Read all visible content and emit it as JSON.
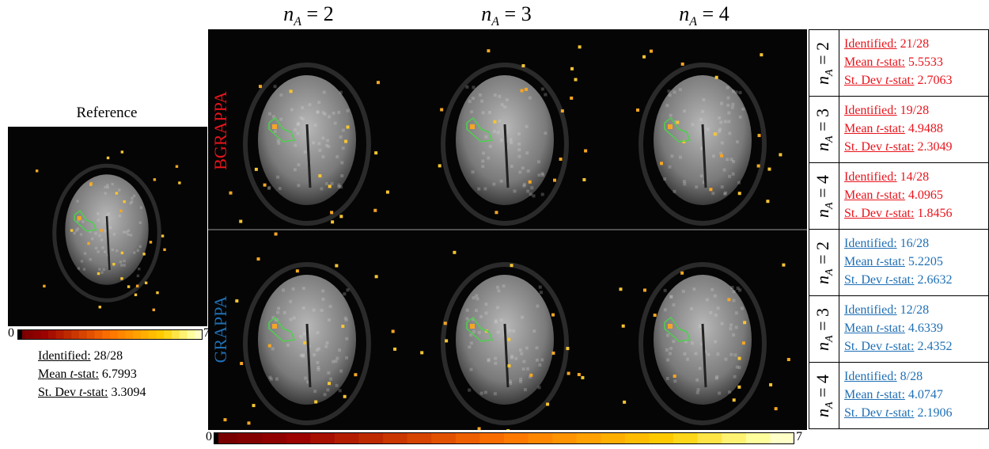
{
  "reference": {
    "title": "Reference",
    "colorbar": {
      "min": "0",
      "max": "7"
    },
    "stats": [
      {
        "label": [
          "Identified:"
        ],
        "value": "28/28"
      },
      {
        "label": [
          "Mean ",
          "t",
          "-stat:"
        ],
        "value": "6.7993"
      },
      {
        "label": [
          "St. Dev ",
          "t",
          "-stat:"
        ],
        "value": "3.3094"
      }
    ]
  },
  "columns": [
    {
      "symbol": "n",
      "subscript": "A",
      "relation": "= 2"
    },
    {
      "symbol": "n",
      "subscript": "A",
      "relation": "= 3"
    },
    {
      "symbol": "n",
      "subscript": "A",
      "relation": "= 4"
    }
  ],
  "methods": [
    {
      "name": "BGRAPPA",
      "color": "#e8141c",
      "rows": [
        {
          "label": {
            "symbol": "n",
            "subscript": "A",
            "relation": "= 2"
          },
          "stats": [
            {
              "label": [
                "Identified:"
              ],
              "value": "21/28"
            },
            {
              "label": [
                "Mean ",
                "t",
                "-stat:"
              ],
              "value": "5.5533"
            },
            {
              "label": [
                "St. Dev ",
                "t",
                "-stat:"
              ],
              "value": "2.7063"
            }
          ]
        },
        {
          "label": {
            "symbol": "n",
            "subscript": "A",
            "relation": "= 3"
          },
          "stats": [
            {
              "label": [
                "Identified:"
              ],
              "value": "19/28"
            },
            {
              "label": [
                "Mean ",
                "t",
                "-stat:"
              ],
              "value": "4.9488"
            },
            {
              "label": [
                "St. Dev ",
                "t",
                "-stat:"
              ],
              "value": "2.3049"
            }
          ]
        },
        {
          "label": {
            "symbol": "n",
            "subscript": "A",
            "relation": "= 4"
          },
          "stats": [
            {
              "label": [
                "Identified:"
              ],
              "value": "14/28"
            },
            {
              "label": [
                "Mean ",
                "t",
                "-stat:"
              ],
              "value": "4.0965"
            },
            {
              "label": [
                "St. Dev ",
                "t",
                "-stat:"
              ],
              "value": "1.8456"
            }
          ]
        }
      ]
    },
    {
      "name": "GRAPPA",
      "color": "#1f6fb4",
      "rows": [
        {
          "label": {
            "symbol": "n",
            "subscript": "A",
            "relation": "= 2"
          },
          "stats": [
            {
              "label": [
                "Identified:"
              ],
              "value": "16/28"
            },
            {
              "label": [
                "Mean ",
                "t",
                "-stat:"
              ],
              "value": "5.2205"
            },
            {
              "label": [
                "St. Dev ",
                "t",
                "-stat:"
              ],
              "value": "2.6632"
            }
          ]
        },
        {
          "label": {
            "symbol": "n",
            "subscript": "A",
            "relation": "= 3"
          },
          "stats": [
            {
              "label": [
                "Identified:"
              ],
              "value": "12/28"
            },
            {
              "label": [
                "Mean ",
                "t",
                "-stat:"
              ],
              "value": "4.6339"
            },
            {
              "label": [
                "St. Dev ",
                "t",
                "-stat:"
              ],
              "value": "2.4352"
            }
          ]
        },
        {
          "label": {
            "symbol": "n",
            "subscript": "A",
            "relation": "= 4"
          },
          "stats": [
            {
              "label": [
                "Identified:"
              ],
              "value": "8/28"
            },
            {
              "label": [
                "Mean ",
                "t",
                "-stat:"
              ],
              "value": "4.0747"
            },
            {
              "label": [
                "St. Dev ",
                "t",
                "-stat:"
              ],
              "value": "2.1906"
            }
          ]
        }
      ]
    }
  ],
  "colorbar": {
    "min": "0",
    "max": "7"
  }
}
